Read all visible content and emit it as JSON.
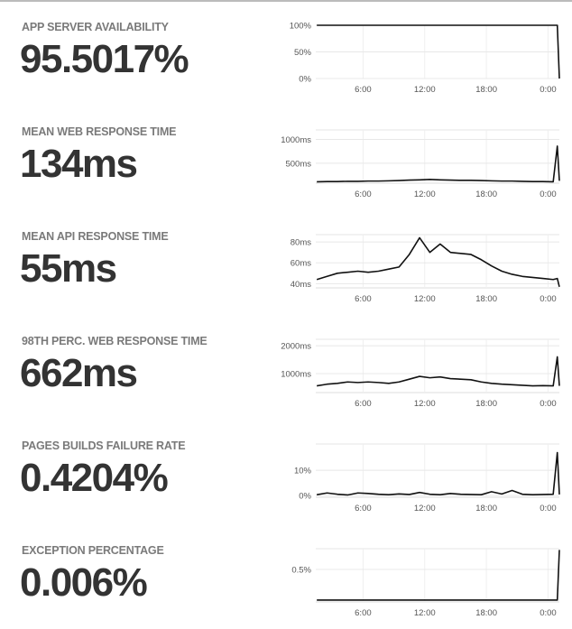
{
  "chart_data": [
    {
      "type": "line",
      "title": "APP SERVER AVAILABILITY",
      "headline": "95.5017%",
      "color": "#111111",
      "x": [
        1.5,
        2.5,
        3.5,
        4.5,
        5.5,
        6.5,
        7.5,
        8.5,
        9.5,
        10.5,
        11.5,
        12.5,
        13.5,
        14.5,
        15.5,
        16.5,
        17.5,
        18.5,
        19.5,
        20.5,
        21.5,
        22.5,
        23.5,
        24.5,
        24.9,
        25.1
      ],
      "values": [
        100,
        100,
        100,
        100,
        100,
        100,
        100,
        100,
        100,
        100,
        100,
        100,
        100,
        100,
        100,
        100,
        100,
        100,
        100,
        100,
        100,
        100,
        100,
        100,
        100,
        0
      ],
      "xlim": [
        1.4,
        25.1
      ],
      "ylim": [
        0,
        100
      ],
      "xticks": [
        {
          "value": 6,
          "label": "6:00"
        },
        {
          "value": 12,
          "label": "12:00"
        },
        {
          "value": 18,
          "label": "18:00"
        },
        {
          "value": 24,
          "label": "0:00"
        }
      ],
      "yticks": [
        {
          "value": 0,
          "label": "0%"
        },
        {
          "value": 50,
          "label": "50%"
        },
        {
          "value": 100,
          "label": "100%"
        }
      ],
      "grid": true
    },
    {
      "type": "line",
      "title": "MEAN WEB RESPONSE TIME",
      "headline": "134ms",
      "color": "#111111",
      "x": [
        1.5,
        2.5,
        3.5,
        4.5,
        5.5,
        6.5,
        7.5,
        8.5,
        9.5,
        10.5,
        11.5,
        12.5,
        13.5,
        14.5,
        15.5,
        16.5,
        17.5,
        18.5,
        19.5,
        20.5,
        21.5,
        22.5,
        23.5,
        24.5,
        24.9,
        25.1
      ],
      "values": [
        110,
        115,
        115,
        120,
        120,
        125,
        125,
        130,
        135,
        145,
        150,
        160,
        150,
        145,
        140,
        140,
        135,
        130,
        125,
        125,
        120,
        115,
        115,
        110,
        860,
        130
      ],
      "xlim": [
        1.4,
        25.1
      ],
      "ylim": [
        80,
        1200
      ],
      "xticks": [
        {
          "value": 6,
          "label": "6:00"
        },
        {
          "value": 12,
          "label": "12:00"
        },
        {
          "value": 18,
          "label": "18:00"
        },
        {
          "value": 24,
          "label": "0:00"
        }
      ],
      "yticks": [
        {
          "value": 500,
          "label": "500ms"
        },
        {
          "value": 1000,
          "label": "1000ms"
        }
      ],
      "grid": true
    },
    {
      "type": "line",
      "title": "MEAN API RESPONSE TIME",
      "headline": "55ms",
      "color": "#111111",
      "x": [
        1.5,
        2.5,
        3.5,
        4.5,
        5.5,
        6.5,
        7.5,
        8.5,
        9.5,
        10.5,
        11.5,
        12.5,
        13.5,
        14.5,
        15.5,
        16.5,
        17.5,
        18.5,
        19.5,
        20.5,
        21.5,
        22.5,
        23.5,
        24.5,
        24.9,
        25.1
      ],
      "values": [
        44,
        47,
        50,
        51,
        52,
        51,
        52,
        54,
        56,
        68,
        84,
        70,
        78,
        70,
        69,
        68,
        63,
        57,
        52,
        49,
        47,
        46,
        45,
        44,
        45,
        37
      ],
      "xlim": [
        1.4,
        25.1
      ],
      "ylim": [
        36,
        87
      ],
      "xticks": [
        {
          "value": 6,
          "label": "6:00"
        },
        {
          "value": 12,
          "label": "12:00"
        },
        {
          "value": 18,
          "label": "18:00"
        },
        {
          "value": 24,
          "label": "0:00"
        }
      ],
      "yticks": [
        {
          "value": 40,
          "label": "40ms"
        },
        {
          "value": 60,
          "label": "60ms"
        },
        {
          "value": 80,
          "label": "80ms"
        }
      ],
      "grid": true
    },
    {
      "type": "line",
      "title": "98TH PERC. WEB RESPONSE TIME",
      "headline": "662ms",
      "color": "#111111",
      "x": [
        1.5,
        2.5,
        3.5,
        4.5,
        5.5,
        6.5,
        7.5,
        8.5,
        9.5,
        10.5,
        11.5,
        12.5,
        13.5,
        14.5,
        15.5,
        16.5,
        17.5,
        18.5,
        19.5,
        20.5,
        21.5,
        22.5,
        23.5,
        24.5,
        24.9,
        25.1
      ],
      "values": [
        560,
        620,
        650,
        700,
        680,
        700,
        680,
        650,
        700,
        800,
        900,
        850,
        880,
        820,
        800,
        780,
        700,
        650,
        620,
        600,
        580,
        560,
        570,
        560,
        1600,
        560
      ],
      "xlim": [
        1.4,
        25.1
      ],
      "ylim": [
        320,
        2230
      ],
      "xticks": [
        {
          "value": 6,
          "label": "6:00"
        },
        {
          "value": 12,
          "label": "12:00"
        },
        {
          "value": 18,
          "label": "18:00"
        },
        {
          "value": 24,
          "label": "0:00"
        }
      ],
      "yticks": [
        {
          "value": 1000,
          "label": "1000ms"
        },
        {
          "value": 2000,
          "label": "2000ms"
        }
      ],
      "grid": true
    },
    {
      "type": "line",
      "title": "PAGES BUILDS FAILURE RATE",
      "headline": "0.4204%",
      "color": "#111111",
      "x": [
        1.5,
        2.5,
        3.5,
        4.5,
        5.5,
        6.5,
        7.5,
        8.5,
        9.5,
        10.5,
        11.5,
        12.5,
        13.5,
        14.5,
        15.5,
        16.5,
        17.5,
        18.5,
        19.5,
        20.5,
        21.5,
        22.5,
        23.5,
        24.5,
        24.9,
        25.1
      ],
      "values": [
        0.3,
        1,
        0.5,
        0.2,
        1,
        0.8,
        0.5,
        0.3,
        0.6,
        0.4,
        1.2,
        0.5,
        0.3,
        0.8,
        0.5,
        0.4,
        0.3,
        1.5,
        0.6,
        2,
        0.5,
        0.3,
        0.4,
        0.5,
        17,
        0.4
      ],
      "xlim": [
        1.4,
        25.1
      ],
      "ylim": [
        -0.7,
        20.4
      ],
      "xticks": [
        {
          "value": 6,
          "label": "6:00"
        },
        {
          "value": 12,
          "label": "12:00"
        },
        {
          "value": 18,
          "label": "18:00"
        },
        {
          "value": 24,
          "label": "0:00"
        }
      ],
      "yticks": [
        {
          "value": 0,
          "label": "0%"
        },
        {
          "value": 10,
          "label": "10%"
        }
      ],
      "grid": true
    },
    {
      "type": "line",
      "title": "EXCEPTION PERCENTAGE",
      "headline": "0.006%",
      "color": "#111111",
      "x": [
        1.5,
        2.5,
        3.5,
        4.5,
        5.5,
        6.5,
        7.5,
        8.5,
        9.5,
        10.5,
        11.5,
        12.5,
        13.5,
        14.5,
        15.5,
        16.5,
        17.5,
        18.5,
        19.5,
        20.5,
        21.5,
        22.5,
        23.5,
        24.5,
        24.9,
        25.1
      ],
      "values": [
        0,
        0,
        0,
        0,
        0,
        0,
        0,
        0,
        0,
        0,
        0,
        0,
        0,
        0,
        0,
        0,
        0,
        0,
        0,
        0,
        0,
        0,
        0,
        0,
        0,
        0.82
      ],
      "xlim": [
        1.4,
        25.1
      ],
      "ylim": [
        -0.03,
        0.84
      ],
      "xticks": [
        {
          "value": 6,
          "label": "6:00"
        },
        {
          "value": 12,
          "label": "12:00"
        },
        {
          "value": 18,
          "label": "18:00"
        },
        {
          "value": 24,
          "label": "0:00"
        }
      ],
      "yticks": [
        {
          "value": 0.5,
          "label": "0.5%"
        }
      ],
      "grid": true
    }
  ]
}
